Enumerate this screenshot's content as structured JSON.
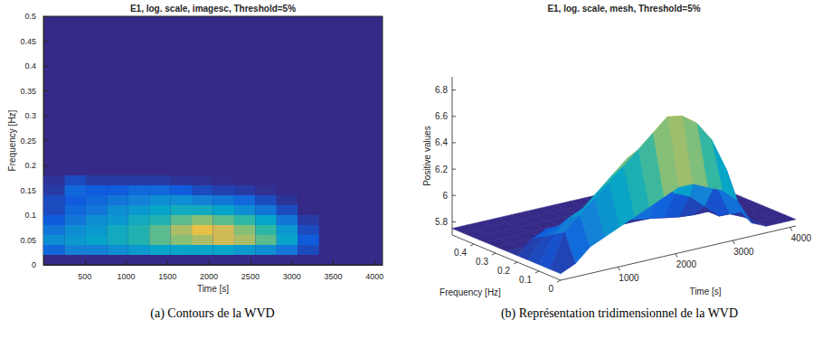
{
  "chart_data": [
    {
      "type": "heatmap",
      "title": "E1, log. scale, imagesc, Threshold=5%",
      "caption": "(a) Contours de la WVD",
      "x_label": "Time [s]",
      "y_label": "Frequency [Hz]",
      "xlim": [
        0,
        4096
      ],
      "ylim": [
        0,
        0.5
      ],
      "xticks": [
        500,
        1000,
        1500,
        2000,
        2500,
        3000,
        3500,
        4000
      ],
      "yticks": [
        0,
        0.05,
        0.1,
        0.15,
        0.2,
        0.25,
        0.3,
        0.35,
        0.4,
        0.45,
        0.5
      ],
      "grid": false,
      "time_edges": [
        0,
        256,
        512,
        768,
        1024,
        1280,
        1536,
        1792,
        2048,
        2304,
        2560,
        2816,
        3072,
        3328
      ],
      "freq_edges": [
        0.02,
        0.04,
        0.06,
        0.08,
        0.1,
        0.12,
        0.14,
        0.16,
        0.18
      ],
      "values": [
        [
          5.95,
          6.05,
          6.05,
          6.1,
          6.15,
          6.2,
          6.2,
          6.2,
          6.2,
          6.15,
          6.1,
          6.0,
          5.85
        ],
        [
          6.1,
          6.15,
          6.2,
          6.25,
          6.3,
          6.4,
          6.45,
          6.5,
          6.55,
          6.5,
          6.4,
          6.2,
          5.9
        ],
        [
          6.0,
          6.1,
          6.15,
          6.25,
          6.3,
          6.4,
          6.5,
          6.6,
          6.55,
          6.45,
          6.35,
          6.15,
          5.85
        ],
        [
          5.9,
          6.0,
          6.1,
          6.15,
          6.25,
          6.3,
          6.4,
          6.45,
          6.4,
          6.35,
          6.2,
          6.0,
          5.8
        ],
        [
          5.85,
          5.95,
          6.0,
          6.1,
          6.15,
          6.2,
          6.25,
          6.25,
          6.2,
          6.1,
          6.0,
          5.85,
          5.75
        ],
        [
          5.85,
          5.9,
          5.95,
          6.0,
          6.05,
          6.1,
          6.1,
          6.05,
          6.0,
          5.95,
          5.85,
          5.78,
          5.75
        ],
        [
          5.8,
          5.95,
          5.9,
          5.9,
          5.95,
          5.95,
          5.9,
          5.85,
          5.82,
          5.8,
          5.77,
          5.75,
          5.75
        ],
        [
          5.78,
          5.85,
          5.8,
          5.8,
          5.8,
          5.8,
          5.78,
          5.77,
          5.76,
          5.75,
          5.75,
          5.75,
          5.75
        ]
      ],
      "color_range": [
        5.75,
        6.75
      ]
    },
    {
      "type": "mesh",
      "title": "E1, log. scale, mesh, Threshold=5%",
      "caption": "(b) Représentation tridimensionnel de la WVD",
      "x_label": "Time [s]",
      "y_label": "Frequency [Hz]",
      "z_label": "Positive values",
      "xlim": [
        0,
        4096
      ],
      "ylim": [
        0,
        0.5
      ],
      "zlim": [
        5.7,
        6.9
      ],
      "xticks": [
        1000,
        2000,
        3000,
        4000
      ],
      "yticks": [
        0,
        0.1,
        0.2,
        0.3,
        0.4
      ],
      "zticks": [
        5.8,
        6,
        6.2,
        6.4,
        6.6,
        6.8
      ],
      "grid": false,
      "x": [
        0,
        256,
        512,
        768,
        1024,
        1280,
        1536,
        1792,
        2048,
        2304,
        2560,
        2816,
        3072,
        3328,
        3584,
        3840,
        4096
      ],
      "y": [
        0,
        0.05,
        0.1,
        0.15,
        0.2,
        0.25,
        0.3,
        0.35,
        0.4,
        0.45,
        0.5
      ],
      "values": [
        [
          5.75,
          5.8,
          5.9,
          5.95,
          6.0,
          6.05,
          6.1,
          6.15,
          6.2,
          6.2,
          6.15,
          6.1,
          6.0,
          5.8,
          5.75,
          5.75,
          5.75
        ],
        [
          5.75,
          6.0,
          6.1,
          6.2,
          6.3,
          6.4,
          6.5,
          6.6,
          6.7,
          6.68,
          6.6,
          6.45,
          6.2,
          5.85,
          5.75,
          5.75,
          5.75
        ],
        [
          5.75,
          5.95,
          6.05,
          6.1,
          6.2,
          6.3,
          6.4,
          6.45,
          6.5,
          6.5,
          6.4,
          6.3,
          6.05,
          5.8,
          5.75,
          5.75,
          5.75
        ],
        [
          5.75,
          5.9,
          5.95,
          6.0,
          6.05,
          6.1,
          6.15,
          6.15,
          6.15,
          6.1,
          6.0,
          5.95,
          5.85,
          5.75,
          5.75,
          5.75,
          5.75
        ],
        [
          5.75,
          5.85,
          5.9,
          5.9,
          5.9,
          5.9,
          5.88,
          5.85,
          5.82,
          5.8,
          5.78,
          5.76,
          5.75,
          5.75,
          5.75,
          5.75,
          5.75
        ],
        [
          5.75,
          5.75,
          5.75,
          5.75,
          5.75,
          5.75,
          5.75,
          5.75,
          5.75,
          5.75,
          5.75,
          5.75,
          5.75,
          5.75,
          5.75,
          5.75,
          5.75
        ],
        [
          5.75,
          5.75,
          5.75,
          5.75,
          5.75,
          5.75,
          5.75,
          5.75,
          5.75,
          5.75,
          5.75,
          5.75,
          5.75,
          5.75,
          5.75,
          5.75,
          5.75
        ],
        [
          5.75,
          5.75,
          5.75,
          5.75,
          5.75,
          5.75,
          5.75,
          5.75,
          5.75,
          5.75,
          5.75,
          5.75,
          5.75,
          5.75,
          5.75,
          5.75,
          5.75
        ],
        [
          5.75,
          5.75,
          5.75,
          5.75,
          5.75,
          5.75,
          5.75,
          5.75,
          5.75,
          5.75,
          5.75,
          5.75,
          5.75,
          5.75,
          5.75,
          5.75,
          5.75
        ],
        [
          5.75,
          5.75,
          5.75,
          5.75,
          5.75,
          5.75,
          5.75,
          5.75,
          5.75,
          5.75,
          5.75,
          5.75,
          5.75,
          5.75,
          5.75,
          5.75,
          5.75
        ],
        [
          5.75,
          5.75,
          5.75,
          5.75,
          5.75,
          5.75,
          5.75,
          5.75,
          5.75,
          5.75,
          5.75,
          5.75,
          5.75,
          5.75,
          5.75,
          5.75,
          5.75
        ]
      ],
      "color_range": [
        5.75,
        6.7
      ]
    }
  ]
}
